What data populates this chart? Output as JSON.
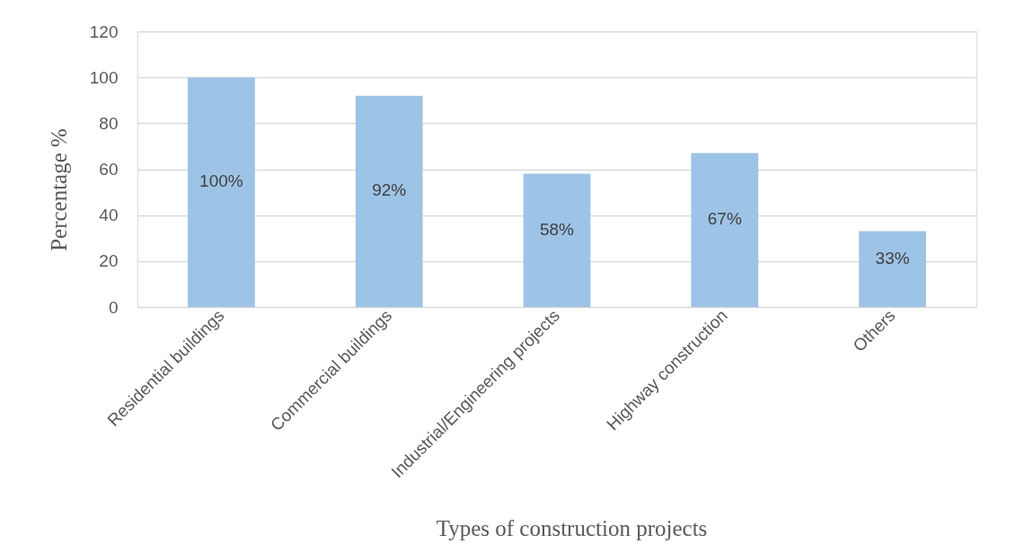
{
  "chart_data": {
    "type": "bar",
    "xlabel": "Types of construction projects",
    "ylabel": "Percentage %",
    "categories": [
      "Residential buildings",
      "Commercial buildings",
      "Industrial/Engineering projects",
      "Highway construction",
      "Others"
    ],
    "values": [
      100,
      92,
      58,
      67,
      33
    ],
    "color": "#9dc3e6",
    "value_labels": [
      "100%",
      "92%",
      "58%",
      "67%",
      "33%"
    ],
    "ylim": [
      0,
      120
    ],
    "yticks": [
      0,
      20,
      40,
      60,
      80,
      100,
      120
    ],
    "grid": "y"
  }
}
